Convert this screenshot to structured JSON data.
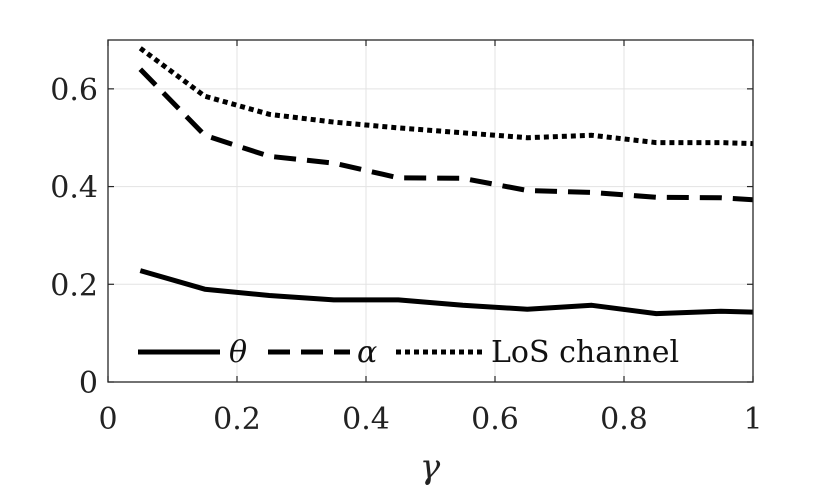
{
  "chart_data": {
    "type": "line",
    "title": "",
    "xlabel": "γ",
    "ylabel": "",
    "xlim": [
      0,
      1
    ],
    "ylim": [
      0,
      0.7
    ],
    "xticks": [
      "0",
      "0.2",
      "0.4",
      "0.6",
      "0.8",
      "1"
    ],
    "yticks": [
      "0",
      "0.2",
      "0.4",
      "0.6"
    ],
    "grid": true,
    "legend_position": "bottom, inside",
    "x": [
      0.05,
      0.15,
      0.25,
      0.35,
      0.45,
      0.55,
      0.65,
      0.75,
      0.85,
      0.95,
      1.0
    ],
    "series": [
      {
        "name": "θ",
        "style": "solid",
        "values": [
          0.228,
          0.19,
          0.177,
          0.168,
          0.168,
          0.157,
          0.149,
          0.157,
          0.14,
          0.145,
          0.143
        ]
      },
      {
        "name": "α",
        "style": "dashed",
        "values": [
          0.64,
          0.505,
          0.462,
          0.448,
          0.418,
          0.417,
          0.392,
          0.388,
          0.378,
          0.377,
          0.373
        ]
      },
      {
        "name": "LoS channel",
        "style": "dotted",
        "values": [
          0.683,
          0.585,
          0.548,
          0.532,
          0.52,
          0.51,
          0.5,
          0.505,
          0.49,
          0.49,
          0.488
        ]
      }
    ]
  }
}
